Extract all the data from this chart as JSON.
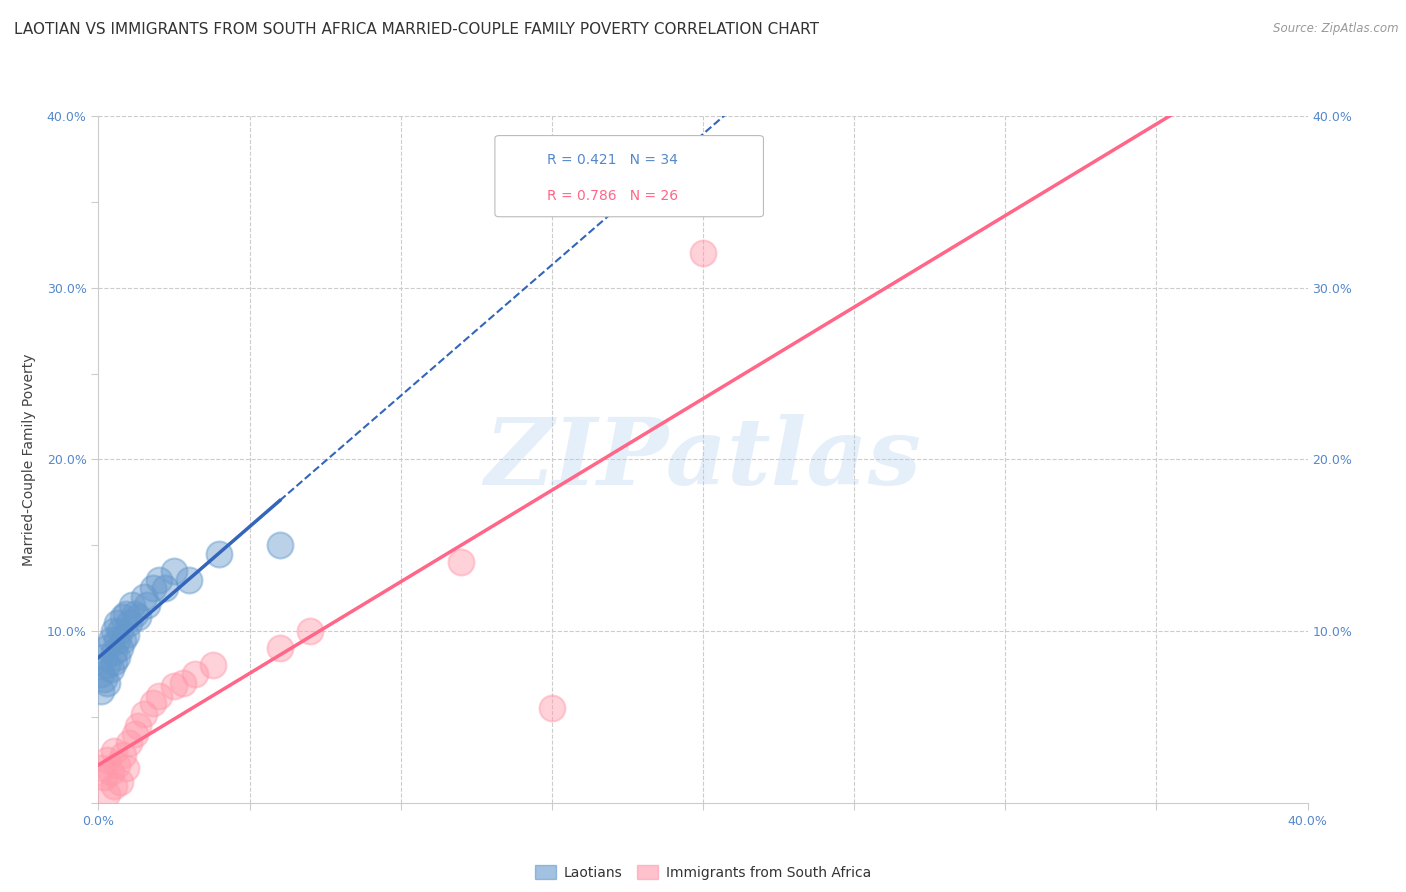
{
  "title": "LAOTIAN VS IMMIGRANTS FROM SOUTH AFRICA MARRIED-COUPLE FAMILY POVERTY CORRELATION CHART",
  "source": "Source: ZipAtlas.com",
  "ylabel": "Married-Couple Family Poverty",
  "xlim": [
    0.0,
    0.4
  ],
  "ylim": [
    0.0,
    0.4
  ],
  "laotian_color": "#6699CC",
  "sa_color": "#FF99AA",
  "laotian_line_color": "#3366BB",
  "sa_line_color": "#FF6688",
  "laotian_R": 0.421,
  "laotian_N": 34,
  "sa_R": 0.786,
  "sa_N": 26,
  "background_color": "#FFFFFF",
  "grid_color": "#CCCCCC",
  "tick_color": "#5588CC",
  "tick_fontsize": 9,
  "axis_label_fontsize": 10,
  "title_fontsize": 11,
  "watermark_text": "ZIPatlas",
  "laotian_x": [
    0.001,
    0.001,
    0.002,
    0.002,
    0.003,
    0.003,
    0.003,
    0.004,
    0.004,
    0.005,
    0.005,
    0.005,
    0.006,
    0.006,
    0.006,
    0.007,
    0.007,
    0.008,
    0.008,
    0.009,
    0.009,
    0.01,
    0.011,
    0.012,
    0.013,
    0.015,
    0.016,
    0.018,
    0.02,
    0.022,
    0.025,
    0.03,
    0.04,
    0.06
  ],
  "laotian_y": [
    0.065,
    0.075,
    0.072,
    0.085,
    0.07,
    0.08,
    0.09,
    0.078,
    0.095,
    0.082,
    0.088,
    0.1,
    0.085,
    0.095,
    0.105,
    0.09,
    0.1,
    0.095,
    0.108,
    0.098,
    0.11,
    0.105,
    0.115,
    0.11,
    0.108,
    0.12,
    0.115,
    0.125,
    0.13,
    0.125,
    0.135,
    0.13,
    0.145,
    0.15
  ],
  "sa_x": [
    0.001,
    0.002,
    0.003,
    0.003,
    0.004,
    0.005,
    0.005,
    0.006,
    0.007,
    0.008,
    0.009,
    0.01,
    0.012,
    0.013,
    0.015,
    0.018,
    0.02,
    0.025,
    0.028,
    0.032,
    0.038,
    0.06,
    0.07,
    0.12,
    0.15,
    0.2
  ],
  "sa_y": [
    0.02,
    0.015,
    0.005,
    0.025,
    0.018,
    0.01,
    0.03,
    0.022,
    0.012,
    0.028,
    0.02,
    0.035,
    0.04,
    0.045,
    0.052,
    0.058,
    0.062,
    0.068,
    0.07,
    0.075,
    0.08,
    0.09,
    0.1,
    0.14,
    0.055,
    0.32
  ]
}
